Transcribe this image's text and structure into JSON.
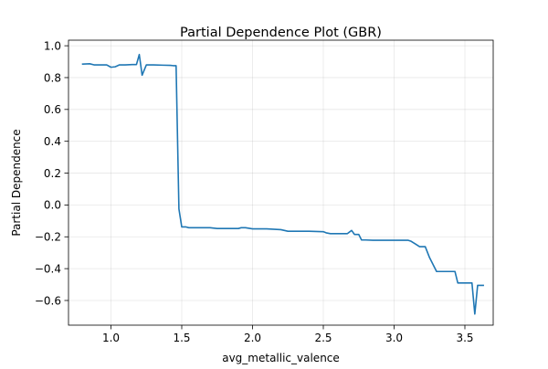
{
  "chart_data": {
    "type": "line",
    "title": "Partial Dependence Plot (GBR)",
    "xlabel": "avg_metallic_valence",
    "ylabel": "Partial Dependence",
    "xlim": [
      0.7,
      3.7
    ],
    "ylim": [
      -0.755,
      1.035
    ],
    "xticks": [
      1.0,
      1.5,
      2.0,
      2.5,
      3.0,
      3.5
    ],
    "xtick_labels": [
      "1.0",
      "1.5",
      "2.0",
      "2.5",
      "3.0",
      "3.5"
    ],
    "yticks": [
      -0.6,
      -0.4,
      -0.2,
      0.0,
      0.2,
      0.4,
      0.6,
      0.8,
      1.0
    ],
    "ytick_labels": [
      "−0.6",
      "−0.4",
      "−0.2",
      "0.0",
      "0.2",
      "0.4",
      "0.6",
      "0.8",
      "1.0"
    ],
    "grid": true,
    "series": [
      {
        "color": "#1f77b4",
        "x": [
          0.8,
          0.85,
          0.88,
          0.97,
          1.0,
          1.03,
          1.06,
          1.1,
          1.15,
          1.18,
          1.2,
          1.22,
          1.25,
          1.3,
          1.37,
          1.42,
          1.44,
          1.46,
          1.48,
          1.5,
          1.53,
          1.55,
          1.6,
          1.7,
          1.75,
          1.8,
          1.9,
          1.92,
          1.95,
          2.0,
          2.1,
          2.2,
          2.25,
          2.3,
          2.4,
          2.5,
          2.52,
          2.55,
          2.6,
          2.67,
          2.7,
          2.72,
          2.75,
          2.77,
          2.8,
          2.85,
          2.9,
          3.0,
          3.05,
          3.1,
          3.12,
          3.15,
          3.18,
          3.22,
          3.25,
          3.3,
          3.35,
          3.43,
          3.45,
          3.5,
          3.55,
          3.57,
          3.59,
          3.61,
          3.63
        ],
        "y": [
          0.885,
          0.887,
          0.88,
          0.88,
          0.865,
          0.868,
          0.88,
          0.88,
          0.882,
          0.882,
          0.945,
          0.815,
          0.88,
          0.88,
          0.878,
          0.877,
          0.875,
          0.875,
          -0.025,
          -0.138,
          -0.138,
          -0.143,
          -0.143,
          -0.143,
          -0.148,
          -0.148,
          -0.148,
          -0.143,
          -0.143,
          -0.15,
          -0.15,
          -0.155,
          -0.165,
          -0.165,
          -0.165,
          -0.168,
          -0.175,
          -0.18,
          -0.18,
          -0.18,
          -0.16,
          -0.185,
          -0.185,
          -0.22,
          -0.22,
          -0.222,
          -0.222,
          -0.222,
          -0.222,
          -0.222,
          -0.228,
          -0.245,
          -0.262,
          -0.262,
          -0.33,
          -0.418,
          -0.418,
          -0.418,
          -0.49,
          -0.49,
          -0.49,
          -0.685,
          -0.505,
          -0.505,
          -0.505
        ]
      }
    ]
  }
}
